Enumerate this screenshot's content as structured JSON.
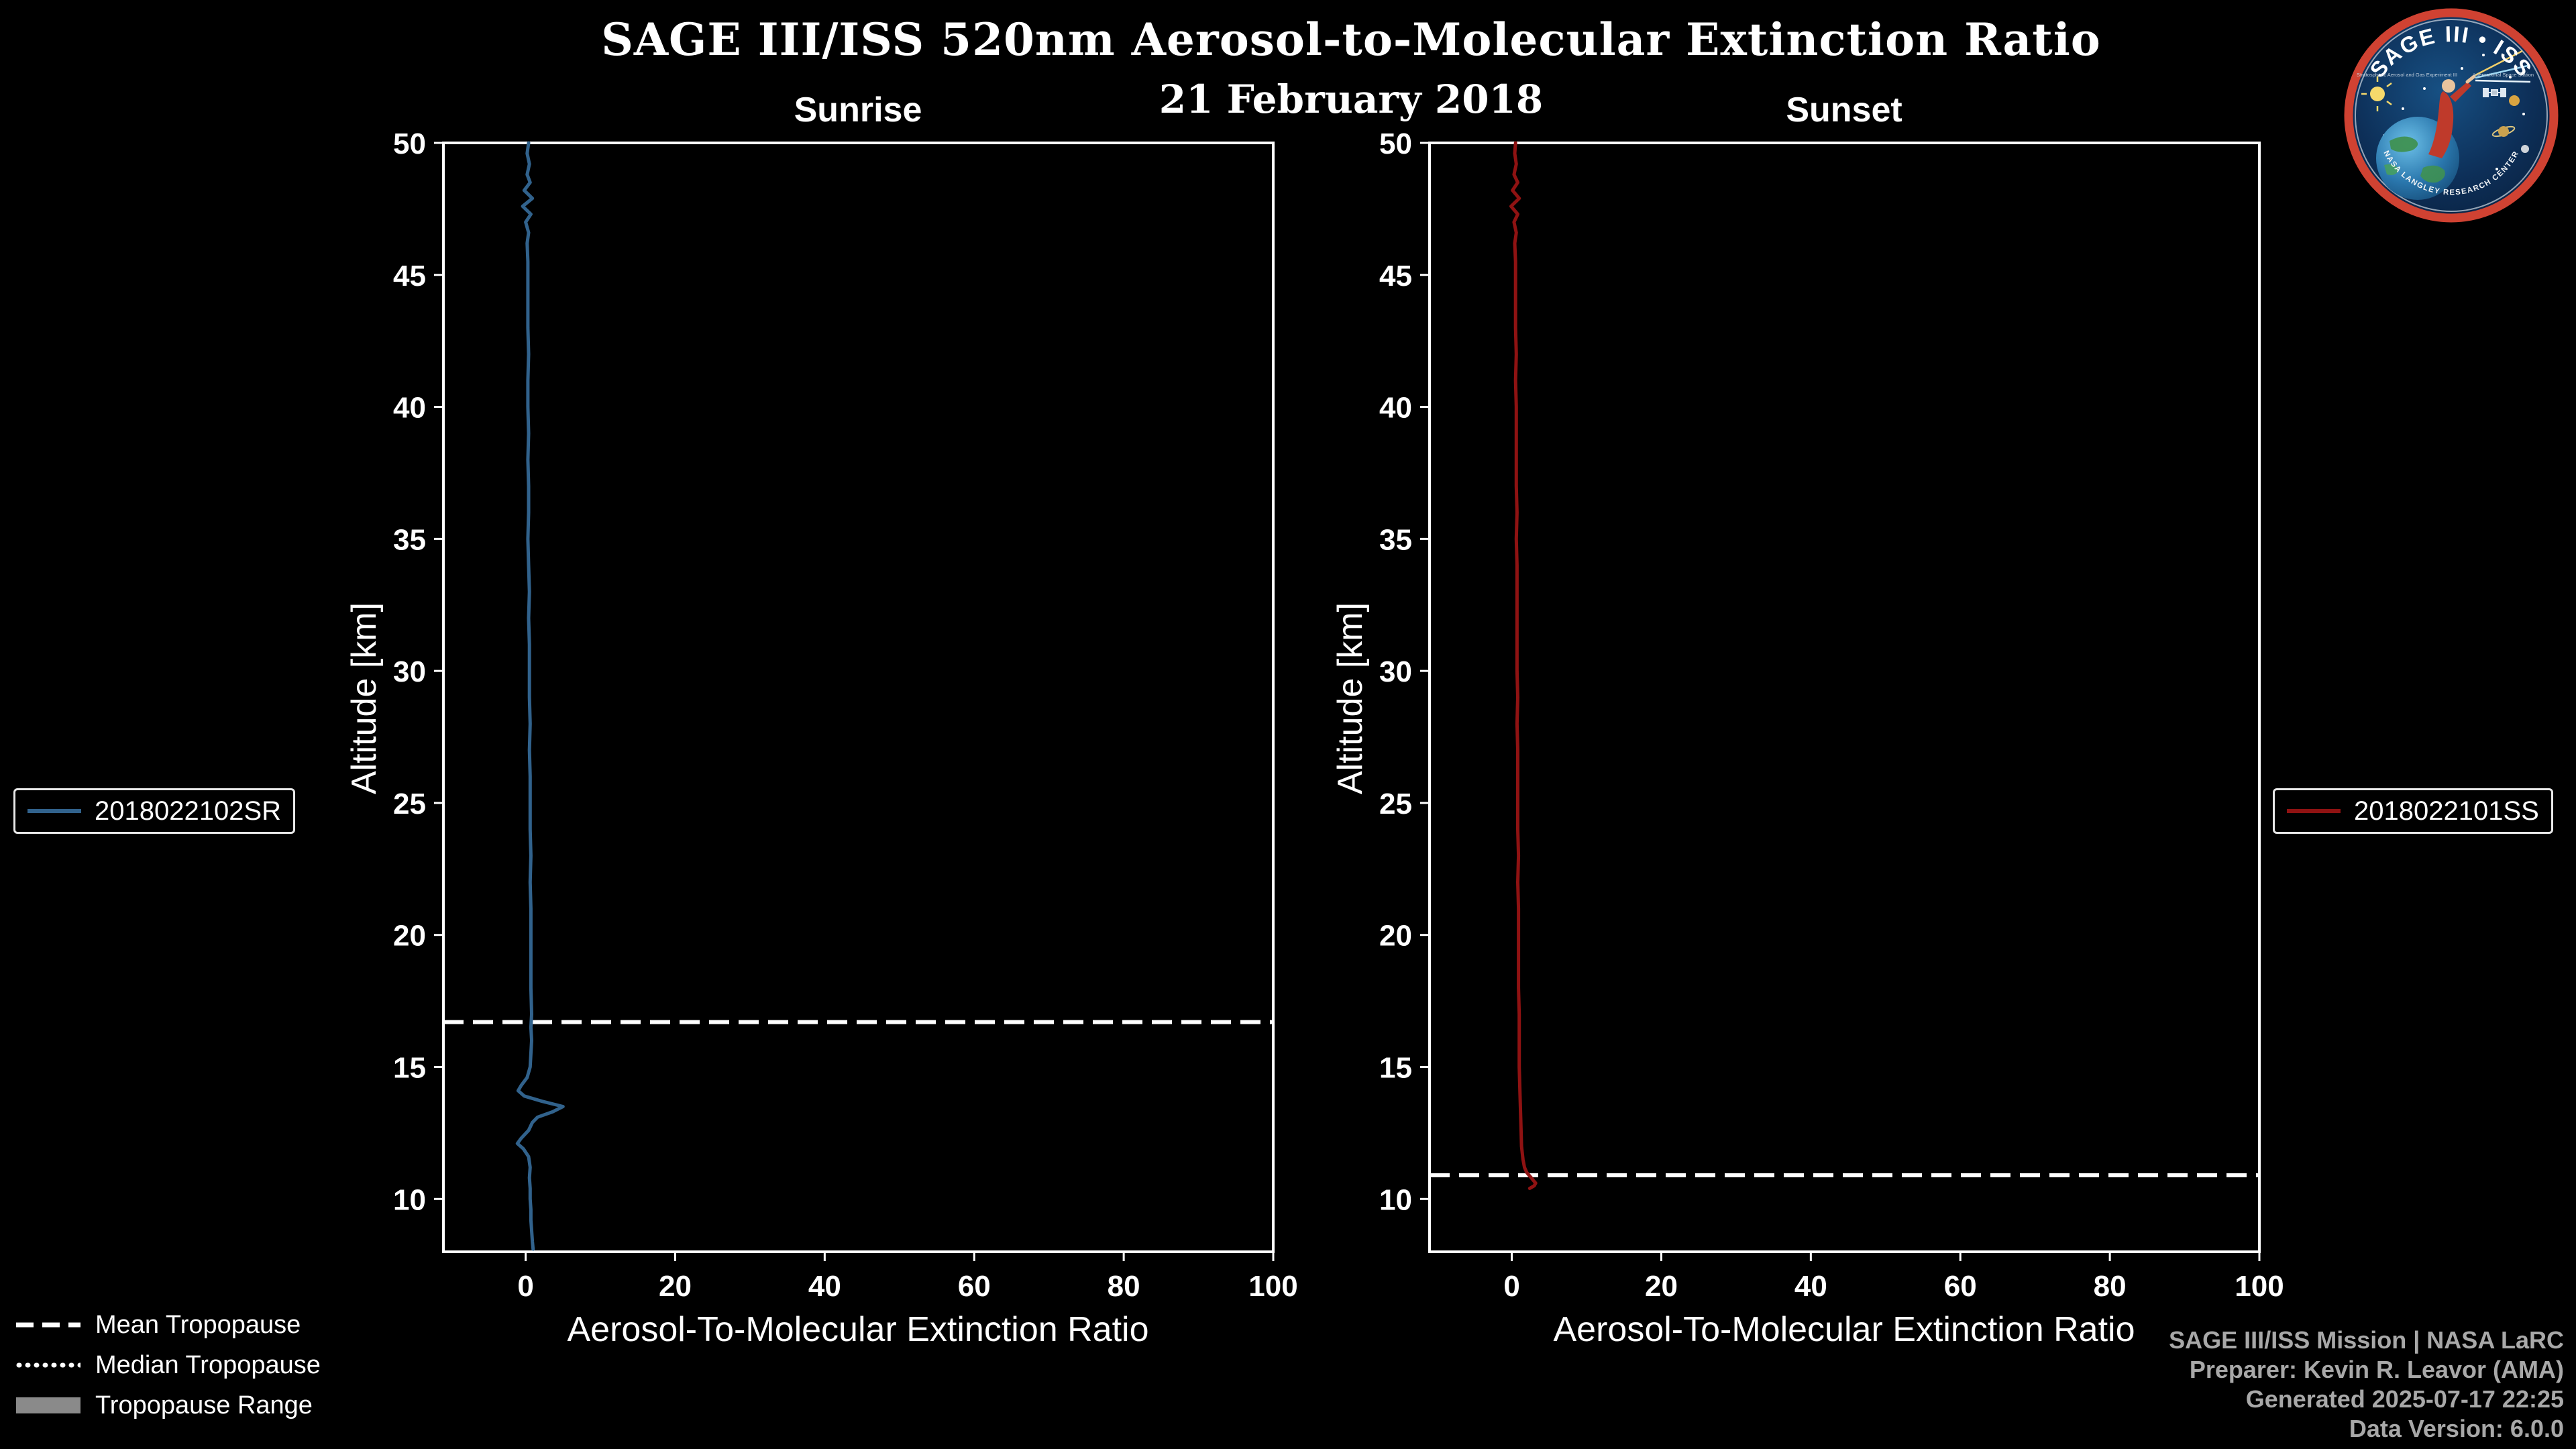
{
  "header": {
    "title": "SAGE III/ISS 520nm Aerosol-to-Molecular Extinction Ratio",
    "date": "21 February 2018"
  },
  "logo": {
    "arc_top": "SAGE III • ISS",
    "sub_left": "Stratospheric Aerosol and Gas Experiment III",
    "sub_right": "International Space Station",
    "arc_bottom": "NASA LANGLEY RESEARCH CENTER",
    "ring_color": "#d04232"
  },
  "chart_data": [
    {
      "type": "line",
      "title": "Sunrise",
      "xlabel": "Aerosol-To-Molecular Extinction Ratio",
      "ylabel": "Altitude [km]",
      "xlim": [
        -11,
        100
      ],
      "ylim": [
        8,
        50
      ],
      "xticks": [
        0,
        20,
        40,
        60,
        80,
        100
      ],
      "yticks": [
        10,
        15,
        20,
        25,
        30,
        35,
        40,
        45,
        50
      ],
      "grid": false,
      "mean_tropopause_km": 16.7,
      "series": [
        {
          "name": "2018022102SR",
          "color": "#31628c",
          "points_alt_ratio": [
            [
              50.0,
              0.4
            ],
            [
              49.6,
              0.2
            ],
            [
              49.2,
              0.5
            ],
            [
              48.8,
              0.2
            ],
            [
              48.5,
              0.6
            ],
            [
              48.2,
              -0.2
            ],
            [
              47.9,
              0.9
            ],
            [
              47.6,
              -0.4
            ],
            [
              47.3,
              0.7
            ],
            [
              47.0,
              0.0
            ],
            [
              46.6,
              0.4
            ],
            [
              46.2,
              0.2
            ],
            [
              45.5,
              0.3
            ],
            [
              45.0,
              0.3
            ],
            [
              44.0,
              0.3
            ],
            [
              43.0,
              0.3
            ],
            [
              42.0,
              0.4
            ],
            [
              41.0,
              0.3
            ],
            [
              40.0,
              0.3
            ],
            [
              39.0,
              0.4
            ],
            [
              38.0,
              0.3
            ],
            [
              37.0,
              0.4
            ],
            [
              36.0,
              0.4
            ],
            [
              35.0,
              0.3
            ],
            [
              34.0,
              0.4
            ],
            [
              33.0,
              0.5
            ],
            [
              32.0,
              0.4
            ],
            [
              31.0,
              0.5
            ],
            [
              30.0,
              0.5
            ],
            [
              29.0,
              0.5
            ],
            [
              28.0,
              0.6
            ],
            [
              27.0,
              0.5
            ],
            [
              26.0,
              0.6
            ],
            [
              25.0,
              0.6
            ],
            [
              24.0,
              0.6
            ],
            [
              23.0,
              0.7
            ],
            [
              22.0,
              0.6
            ],
            [
              21.0,
              0.7
            ],
            [
              20.0,
              0.7
            ],
            [
              19.0,
              0.7
            ],
            [
              18.0,
              0.7
            ],
            [
              17.0,
              0.8
            ],
            [
              16.5,
              0.7
            ],
            [
              16.0,
              0.8
            ],
            [
              15.5,
              0.7
            ],
            [
              15.0,
              0.6
            ],
            [
              14.6,
              0.2
            ],
            [
              14.3,
              -0.6
            ],
            [
              14.1,
              -1.0
            ],
            [
              13.9,
              -0.2
            ],
            [
              13.7,
              2.2
            ],
            [
              13.5,
              5.0
            ],
            [
              13.3,
              3.6
            ],
            [
              13.1,
              1.6
            ],
            [
              12.9,
              0.9
            ],
            [
              12.6,
              0.4
            ],
            [
              12.3,
              -0.6
            ],
            [
              12.1,
              -1.1
            ],
            [
              11.9,
              -0.3
            ],
            [
              11.6,
              0.4
            ],
            [
              11.2,
              0.6
            ],
            [
              10.8,
              0.5
            ],
            [
              10.4,
              0.6
            ],
            [
              10.0,
              0.6
            ],
            [
              9.6,
              0.7
            ],
            [
              9.2,
              0.7
            ],
            [
              8.8,
              0.8
            ],
            [
              8.4,
              0.9
            ],
            [
              8.1,
              1.0
            ]
          ]
        }
      ]
    },
    {
      "type": "line",
      "title": "Sunset",
      "xlabel": "Aerosol-To-Molecular Extinction Ratio",
      "ylabel": "Altitude [km]",
      "xlim": [
        -11,
        100
      ],
      "ylim": [
        8,
        50
      ],
      "xticks": [
        0,
        20,
        40,
        60,
        80,
        100
      ],
      "yticks": [
        10,
        15,
        20,
        25,
        30,
        35,
        40,
        45,
        50
      ],
      "grid": false,
      "mean_tropopause_km": 10.9,
      "series": [
        {
          "name": "2018022101SS",
          "color": "#8f1212",
          "points_alt_ratio": [
            [
              50.0,
              0.5
            ],
            [
              49.6,
              0.4
            ],
            [
              49.2,
              0.6
            ],
            [
              48.8,
              0.3
            ],
            [
              48.5,
              0.8
            ],
            [
              48.2,
              0.1
            ],
            [
              47.9,
              1.0
            ],
            [
              47.6,
              -0.1
            ],
            [
              47.3,
              0.8
            ],
            [
              47.0,
              0.3
            ],
            [
              46.6,
              0.6
            ],
            [
              46.2,
              0.4
            ],
            [
              45.5,
              0.5
            ],
            [
              45.0,
              0.5
            ],
            [
              44.0,
              0.5
            ],
            [
              43.0,
              0.5
            ],
            [
              42.0,
              0.6
            ],
            [
              41.0,
              0.5
            ],
            [
              40.0,
              0.6
            ],
            [
              39.0,
              0.6
            ],
            [
              38.0,
              0.6
            ],
            [
              37.0,
              0.6
            ],
            [
              36.0,
              0.7
            ],
            [
              35.0,
              0.6
            ],
            [
              34.0,
              0.7
            ],
            [
              33.0,
              0.7
            ],
            [
              32.0,
              0.7
            ],
            [
              31.0,
              0.7
            ],
            [
              30.0,
              0.7
            ],
            [
              29.0,
              0.8
            ],
            [
              28.0,
              0.7
            ],
            [
              27.0,
              0.8
            ],
            [
              26.0,
              0.8
            ],
            [
              25.0,
              0.8
            ],
            [
              24.0,
              0.8
            ],
            [
              23.0,
              0.9
            ],
            [
              22.0,
              0.8
            ],
            [
              21.0,
              0.9
            ],
            [
              20.0,
              0.9
            ],
            [
              19.0,
              0.9
            ],
            [
              18.0,
              0.9
            ],
            [
              17.0,
              1.0
            ],
            [
              16.0,
              1.0
            ],
            [
              15.0,
              1.0
            ],
            [
              14.0,
              1.1
            ],
            [
              13.0,
              1.2
            ],
            [
              12.0,
              1.3
            ],
            [
              11.5,
              1.5
            ],
            [
              11.2,
              1.7
            ],
            [
              11.0,
              2.0
            ],
            [
              10.8,
              2.6
            ],
            [
              10.6,
              3.2
            ],
            [
              10.5,
              3.0
            ],
            [
              10.4,
              2.4
            ]
          ]
        }
      ]
    }
  ],
  "tropopause_legend": {
    "items": [
      {
        "label": "Mean Tropopause",
        "style": "dashed",
        "color": "#ffffff"
      },
      {
        "label": "Median Tropopause",
        "style": "dotted",
        "color": "#ffffff"
      },
      {
        "label": "Tropopause Range",
        "style": "patch",
        "color": "#8a8a8a"
      }
    ]
  },
  "credits": {
    "lines": [
      "SAGE III/ISS Mission | NASA LaRC",
      "Preparer: Kevin R. Leavor (AMA)",
      "Generated 2025-07-17 22:25",
      "Data Version: 6.0.0"
    ]
  },
  "colors": {
    "background": "#000000",
    "axis": "#ffffff",
    "tropopause_line": "#ffffff",
    "credits_text": "#a8a8a8"
  }
}
